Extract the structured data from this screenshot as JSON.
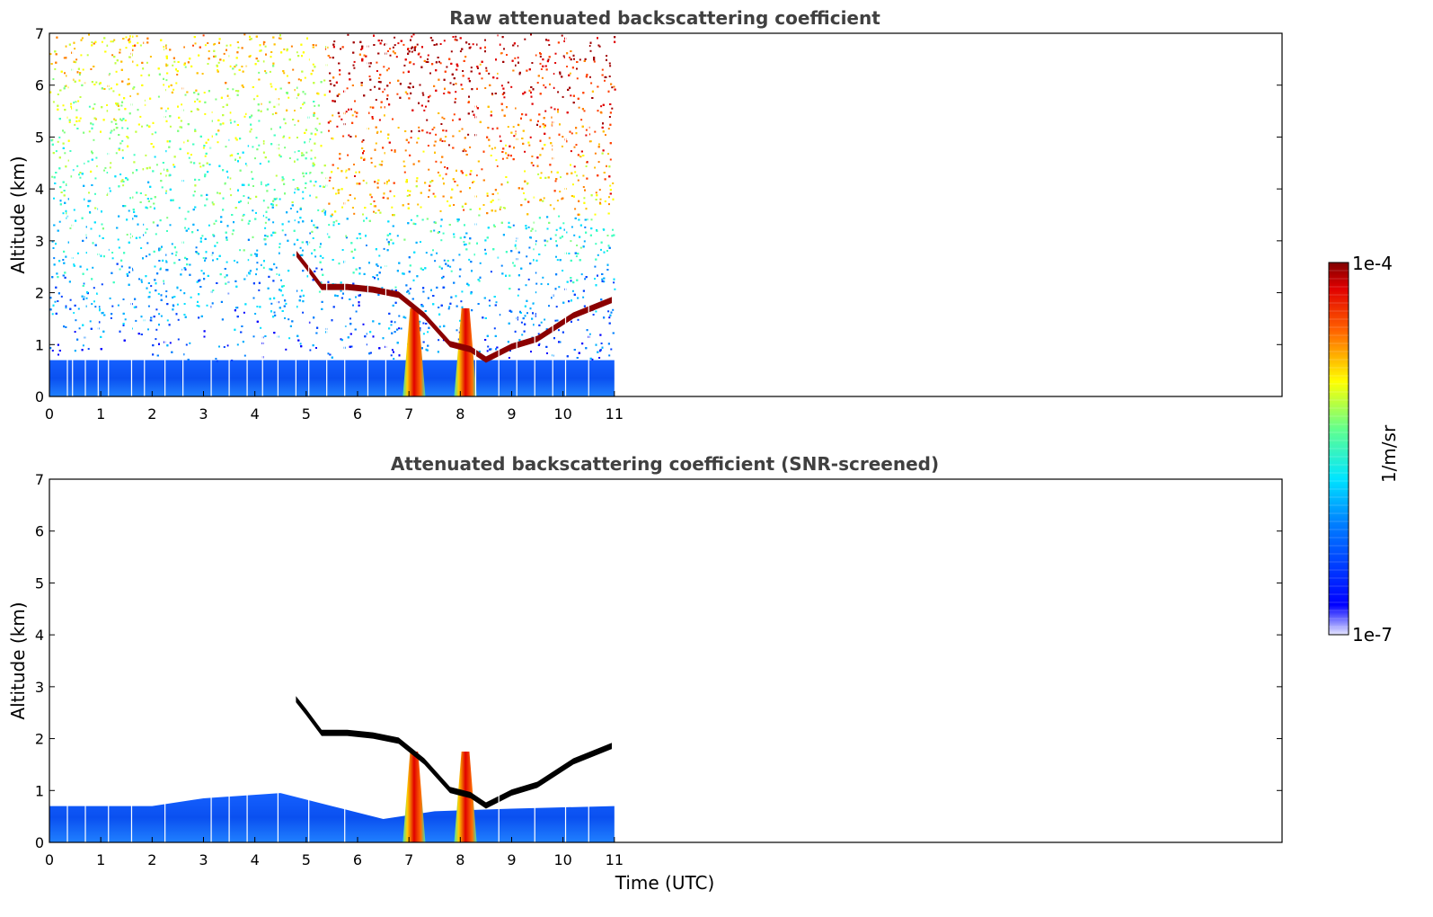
{
  "chart_data": [
    {
      "type": "heatmap",
      "title": "Raw attenuated backscattering coefficient",
      "xlabel": "",
      "ylabel": "Altitude (km)",
      "xlim": [
        0,
        24
      ],
      "ylim": [
        0,
        7
      ],
      "x_ticks": [
        "0",
        "1",
        "2",
        "3",
        "4",
        "5",
        "6",
        "7",
        "8",
        "9",
        "10",
        "11"
      ],
      "y_ticks": [
        "0",
        "1",
        "2",
        "3",
        "4",
        "5",
        "6",
        "7"
      ],
      "data_end_time": 11,
      "features": {
        "boundary_layer_top_km": 0.7,
        "cloud_layer": [
          {
            "t": 4.8,
            "alt": 2.7
          },
          {
            "t": 5.0,
            "alt": 2.45
          },
          {
            "t": 5.3,
            "alt": 2.05
          },
          {
            "t": 5.8,
            "alt": 2.05
          },
          {
            "t": 6.3,
            "alt": 2.0
          },
          {
            "t": 6.8,
            "alt": 1.9
          },
          {
            "t": 7.3,
            "alt": 1.5
          },
          {
            "t": 7.8,
            "alt": 0.95
          },
          {
            "t": 8.2,
            "alt": 0.85
          },
          {
            "t": 8.5,
            "alt": 0.65
          },
          {
            "t": 9.0,
            "alt": 0.9
          },
          {
            "t": 9.5,
            "alt": 1.05
          },
          {
            "t": 10.2,
            "alt": 1.5
          },
          {
            "t": 10.95,
            "alt": 1.8
          }
        ],
        "precipitation_shafts_utc": [
          7.1,
          8.1
        ]
      }
    },
    {
      "type": "heatmap",
      "title": "Attenuated backscattering coefficient (SNR-screened)",
      "xlabel": "Time (UTC)",
      "ylabel": "Altitude (km)",
      "xlim": [
        0,
        24
      ],
      "ylim": [
        0,
        7
      ],
      "x_ticks": [
        "0",
        "1",
        "2",
        "3",
        "4",
        "5",
        "6",
        "7",
        "8",
        "9",
        "10",
        "11"
      ],
      "y_ticks": [
        "0",
        "1",
        "2",
        "3",
        "4",
        "5",
        "6",
        "7"
      ],
      "data_end_time": 11,
      "features": {
        "boundary_layer_top_km": [
          {
            "t": 0,
            "alt": 0.7
          },
          {
            "t": 2.0,
            "alt": 0.7
          },
          {
            "t": 3.0,
            "alt": 0.85
          },
          {
            "t": 4.5,
            "alt": 0.95
          },
          {
            "t": 5.5,
            "alt": 0.7
          },
          {
            "t": 6.5,
            "alt": 0.45
          },
          {
            "t": 7.5,
            "alt": 0.6
          },
          {
            "t": 9.0,
            "alt": 0.65
          },
          {
            "t": 11.0,
            "alt": 0.7
          }
        ],
        "cloud_layer_screened": true,
        "precipitation_shafts_utc": [
          7.1,
          8.1
        ]
      }
    }
  ],
  "colorbar": {
    "label": "1/m/sr",
    "max_label": "1e-4",
    "min_label": "1e-7",
    "scale": "log",
    "colormap": "jet"
  }
}
